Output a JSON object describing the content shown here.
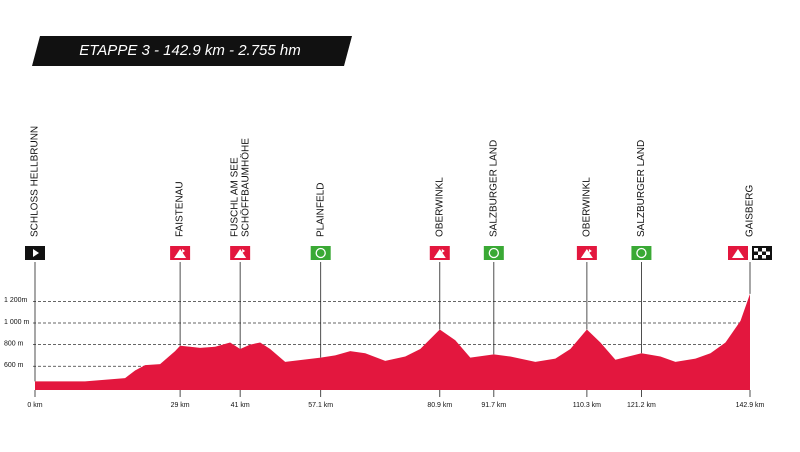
{
  "chart_data": {
    "type": "area",
    "title": "ETAPPE 3 - 142.9 km - 2.755 hm",
    "color": "#e3173e",
    "x": [
      0,
      10,
      18,
      20,
      22,
      25,
      28,
      29,
      31,
      33,
      36,
      39,
      41,
      43,
      45,
      47,
      50,
      57.1,
      60,
      63,
      66,
      70,
      74,
      77,
      80.9,
      84,
      87,
      91.7,
      95,
      100,
      104,
      107,
      110.3,
      113,
      116,
      121.2,
      125,
      128,
      132,
      135,
      138,
      141,
      142.9
    ],
    "values": [
      460,
      460,
      490,
      560,
      610,
      620,
      740,
      790,
      780,
      770,
      780,
      820,
      760,
      800,
      820,
      760,
      640,
      680,
      700,
      740,
      720,
      650,
      690,
      760,
      940,
      840,
      680,
      710,
      690,
      640,
      670,
      760,
      940,
      820,
      660,
      720,
      690,
      640,
      670,
      720,
      820,
      1020,
      1270
    ],
    "xlim": [
      0,
      142.9
    ],
    "ylim": [
      380,
      1300
    ],
    "yticks": [
      {
        "value": 600,
        "label": "600 m"
      },
      {
        "value": 800,
        "label": "800 m"
      },
      {
        "value": 1000,
        "label": "1 000 m"
      },
      {
        "value": 1200,
        "label": "1 200m"
      }
    ],
    "xticks": [
      {
        "value": 0,
        "label": "0 km"
      },
      {
        "value": 29,
        "label": "29 km"
      },
      {
        "value": 41,
        "label": "41 km"
      },
      {
        "value": 57.1,
        "label": "57.1 km"
      },
      {
        "value": 80.9,
        "label": "80.9 km"
      },
      {
        "value": 91.7,
        "label": "91.7 km"
      },
      {
        "value": 110.3,
        "label": "110.3 km"
      },
      {
        "value": 121.2,
        "label": "121.2 km"
      },
      {
        "value": 142.9,
        "label": "142.9 km"
      }
    ],
    "grid": true,
    "waypoints": [
      {
        "x": 0,
        "kind": "start",
        "lines": [
          "SCHLOSS HELLBRUNN"
        ]
      },
      {
        "x": 29,
        "kind": "kom",
        "lines": [
          "FAISTENAU"
        ]
      },
      {
        "x": 41,
        "kind": "kom",
        "lines": [
          "FUSCHL AM SEE",
          "SCHÖFFBAUMHÖHE"
        ]
      },
      {
        "x": 57.1,
        "kind": "sprint",
        "lines": [
          "PLAINFELD"
        ]
      },
      {
        "x": 80.9,
        "kind": "kom",
        "lines": [
          "OBERWINKL"
        ]
      },
      {
        "x": 91.7,
        "kind": "sprint",
        "lines": [
          "SALZBURGER LAND"
        ]
      },
      {
        "x": 110.3,
        "kind": "kom",
        "lines": [
          "OBERWINKL"
        ]
      },
      {
        "x": 121.2,
        "kind": "sprint",
        "lines": [
          "SALZBURGER LAND"
        ]
      },
      {
        "x": 142.9,
        "kind": "finish",
        "lines": [
          "GAISBERG"
        ]
      }
    ]
  }
}
